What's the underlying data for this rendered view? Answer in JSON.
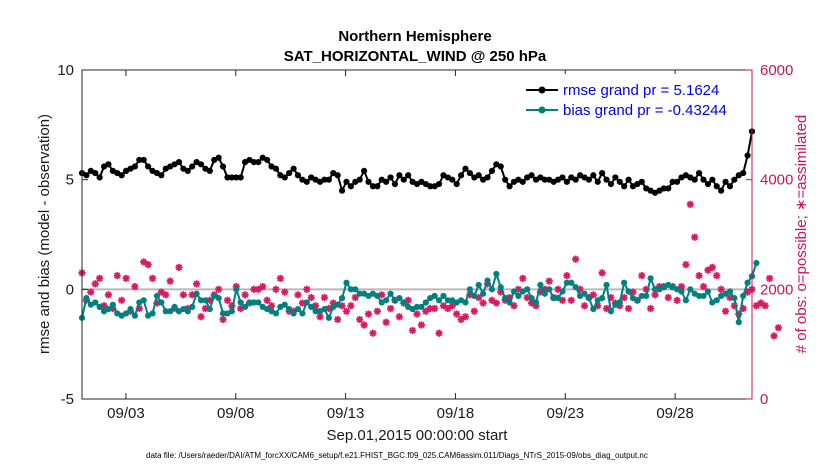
{
  "chart_data": {
    "type": "line",
    "title": "Northern Hemisphere",
    "subtitle": "SAT_HORIZONTAL_WIND @ 250 hPa",
    "xlabel": "Sep.01,2015 00:00:00 start",
    "ylabel": "rmse and bias (model - observation)",
    "ylabel_right": "# of obs: o=possible; ∗=assimilated",
    "footnote": "data file: /Users/raeder/DAI/ATM_forcXX/CAM6_setup/f.e21.FHIST_BGC.f09_025.CAM6assim.011/Diags_NTrS_2015-09/obs_diag_output.nc",
    "xlim": [
      0,
      30.5
    ],
    "ylim": [
      -5,
      10
    ],
    "ylim_right": [
      0,
      6000
    ],
    "xticks": [
      2,
      7,
      12,
      17,
      22,
      27
    ],
    "xtick_labels": [
      "09/03",
      "09/08",
      "09/13",
      "09/18",
      "09/23",
      "09/28"
    ],
    "yticks": [
      -5,
      0,
      5,
      10
    ],
    "yticks_right": [
      0,
      2000,
      4000,
      6000
    ],
    "zero_line": 0,
    "colors": {
      "rmse": "#000000",
      "bias": "#008080",
      "obs": "#d81b60",
      "right_axis": "#c8145f",
      "legend_text": "#0000ee"
    },
    "series": [
      {
        "name": "rmse",
        "legend": "rmse grand pr = 5.1624",
        "axis": "left",
        "values": [
          5.3,
          5.2,
          5.4,
          5.3,
          5.1,
          5.6,
          5.7,
          5.4,
          5.3,
          5.2,
          5.4,
          5.5,
          5.6,
          5.9,
          5.9,
          5.6,
          5.4,
          5.3,
          5.2,
          5.5,
          5.6,
          5.7,
          5.8,
          5.5,
          5.4,
          5.6,
          5.8,
          5.7,
          5.5,
          5.4,
          5.9,
          6.0,
          5.6,
          5.1,
          5.1,
          5.1,
          5.1,
          5.8,
          5.9,
          5.8,
          5.8,
          6.0,
          5.9,
          5.6,
          5.5,
          5.2,
          5.1,
          5.3,
          5.5,
          5.2,
          5.0,
          4.9,
          5.1,
          5.0,
          4.9,
          5.0,
          5.0,
          5.3,
          5.2,
          4.5,
          4.9,
          4.7,
          4.9,
          5.0,
          5.4,
          4.9,
          4.7,
          4.7,
          5.0,
          4.9,
          5.1,
          4.8,
          5.2,
          5.0,
          5.2,
          4.9,
          4.8,
          4.9,
          4.8,
          4.7,
          4.7,
          4.8,
          5.2,
          5.1,
          5.0,
          4.8,
          5.2,
          5.5,
          5.3,
          5.1,
          5.2,
          5.0,
          5.1,
          5.4,
          5.7,
          5.6,
          5.0,
          4.7,
          4.9,
          5.0,
          4.9,
          5.1,
          5.2,
          5.0,
          5.1,
          5.0,
          5.0,
          4.9,
          5.0,
          5.1,
          4.9,
          5.1,
          5.0,
          5.2,
          5.1,
          5.0,
          5.2,
          4.9,
          5.3,
          5.0,
          4.8,
          5.1,
          4.9,
          4.7,
          5.0,
          4.7,
          4.8,
          4.9,
          4.6,
          4.5,
          4.4,
          4.5,
          4.6,
          4.6,
          4.9,
          4.9,
          5.1,
          5.2,
          5.1,
          5.0,
          5.3,
          5.0,
          4.8,
          5.0,
          4.7,
          4.5,
          4.9,
          4.7,
          5.0,
          5.2,
          5.3,
          6.1,
          7.2
        ]
      },
      {
        "name": "bias",
        "legend": "bias grand pr = -0.43244",
        "axis": "left",
        "values": [
          -1.3,
          -0.4,
          -0.7,
          -0.6,
          -0.8,
          -1.0,
          -0.9,
          -0.7,
          -1.1,
          -1.2,
          -1.1,
          -0.9,
          -1.2,
          -0.6,
          -0.5,
          -1.2,
          -1.1,
          -0.3,
          -0.6,
          -1.0,
          -1.0,
          -0.8,
          -1.0,
          -0.9,
          -1.0,
          -0.8,
          -0.2,
          -0.5,
          -0.5,
          -0.9,
          -0.3,
          -0.4,
          -1.1,
          -1.1,
          -1.0,
          0.0,
          -0.6,
          -0.8,
          -0.6,
          -0.6,
          -0.6,
          -0.8,
          -0.9,
          -1.0,
          -1.1,
          -0.8,
          -0.7,
          -0.9,
          -1.1,
          -0.9,
          -1.1,
          -0.6,
          -0.8,
          -1.0,
          -1.0,
          -0.9,
          -1.3,
          -0.8,
          -0.7,
          -0.4,
          0.3,
          0.0,
          0.0,
          -0.2,
          -0.2,
          -0.3,
          -0.2,
          -0.3,
          -0.6,
          -0.5,
          -0.2,
          -0.5,
          -0.4,
          -0.6,
          -0.8,
          -0.9,
          -0.8,
          -0.8,
          -0.6,
          -0.4,
          -0.3,
          -0.5,
          -0.3,
          -0.5,
          -0.5,
          -0.6,
          -0.5,
          -0.6,
          0.0,
          -0.3,
          0.2,
          -0.2,
          0.4,
          0.0,
          0.7,
          0.1,
          -0.4,
          -0.6,
          -0.1,
          -0.3,
          -0.1,
          0.0,
          -0.4,
          -0.6,
          0.2,
          -0.2,
          0.0,
          -0.4,
          -0.4,
          -0.1,
          0.3,
          0.3,
          0.1,
          -0.3,
          -0.2,
          -0.4,
          -0.9,
          -0.5,
          -0.4,
          0.2,
          -1.0,
          -0.7,
          -0.6,
          0.3,
          -0.1,
          -0.4,
          -0.5,
          -0.3,
          -0.3,
          0.5,
          0.0,
          0.0,
          0.1,
          0.2,
          0.1,
          0.0,
          -0.1,
          -0.5,
          0.0,
          -0.2,
          -0.3,
          -0.3,
          -0.1,
          -0.6,
          -0.5,
          -0.3,
          -0.2,
          -0.1,
          -0.4,
          -1.5,
          -0.3,
          0.3,
          0.6,
          1.2
        ]
      },
      {
        "name": "obs_assimilated",
        "axis": "right",
        "marker": "asterisk",
        "values": [
          2300,
          1800,
          1950,
          2100,
          2200,
          1700,
          1900,
          1650,
          2250,
          1800,
          2200,
          1600,
          2050,
          1650,
          2500,
          2450,
          2200,
          1750,
          1950,
          1900,
          2150,
          1650,
          2400,
          1900,
          1650,
          1900,
          2100,
          1500,
          1650,
          1800,
          1900,
          2000,
          1450,
          1800,
          1700,
          2050,
          1650,
          1900,
          1750,
          2000,
          2000,
          2050,
          1800,
          1700,
          2000,
          2200,
          1950,
          1600,
          1600,
          1900,
          1750,
          2000,
          1850,
          1700,
          1500,
          1850,
          1650,
          1750,
          1450,
          1700,
          1600,
          1700,
          1850,
          1450,
          1350,
          1550,
          1200,
          1600,
          1900,
          1400,
          1650,
          1800,
          1500,
          1750,
          1800,
          1250,
          1550,
          1350,
          1600,
          1650,
          1650,
          1200,
          1700,
          1650,
          1700,
          1550,
          1450,
          1500,
          1900,
          1600,
          1850,
          1750,
          2100,
          1800,
          1750,
          1950,
          1800,
          1850,
          1700,
          2000,
          2200,
          1850,
          1750,
          1700,
          1950,
          2000,
          2150,
          1850,
          2000,
          1800,
          2250,
          1800,
          2550,
          2000,
          1700,
          1850,
          1900,
          1700,
          2300,
          1650,
          1850,
          1750,
          1700,
          1850,
          1650,
          1950,
          1800,
          2250,
          2000,
          1650,
          1900,
          2050,
          2050,
          1850,
          2050,
          1800,
          2050,
          2450,
          3550,
          2950,
          2250,
          2050,
          2350,
          2400,
          2250,
          2000,
          1600,
          1850,
          1700,
          1550,
          1650,
          1950,
          2000,
          1700,
          1750,
          1700,
          2200,
          1150,
          1300
        ]
      }
    ]
  }
}
